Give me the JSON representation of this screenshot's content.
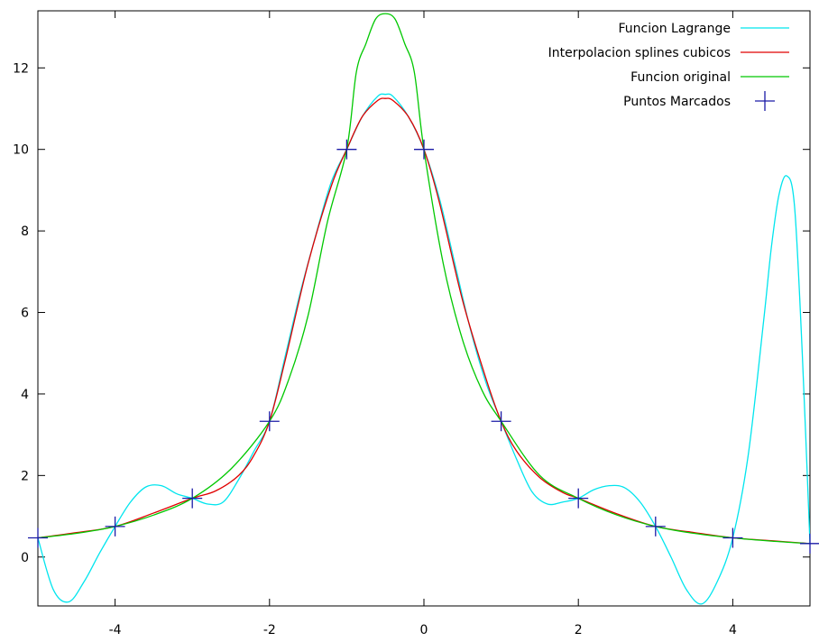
{
  "chart_data": {
    "type": "line",
    "title": "",
    "xlabel": "",
    "ylabel": "",
    "xlim": [
      -5,
      5
    ],
    "ylim": [
      -1.2,
      13.4
    ],
    "grid": false,
    "legend_position": "top-right",
    "x_ticks": [
      "-4",
      "-2",
      "0",
      "2",
      "4"
    ],
    "y_ticks": [
      "0",
      "2",
      "4",
      "6",
      "8",
      "10",
      "12"
    ],
    "x_tick_values": [
      -4,
      -2,
      0,
      2,
      4
    ],
    "y_tick_values": [
      0,
      2,
      4,
      6,
      8,
      10,
      12
    ],
    "series": [
      {
        "name": "Funcion Lagrange",
        "color": "#00e5ee",
        "kind": "line",
        "x": [
          -5,
          -4.8,
          -4.6,
          -4.4,
          -4.2,
          -4,
          -3.8,
          -3.6,
          -3.4,
          -3.2,
          -3,
          -2.8,
          -2.6,
          -2.4,
          -2.2,
          -2,
          -1.8,
          -1.6,
          -1.4,
          -1.2,
          -1,
          -0.8,
          -0.6,
          -0.5,
          -0.4,
          -0.2,
          0,
          0.2,
          0.4,
          0.6,
          0.8,
          1,
          1.2,
          1.4,
          1.6,
          1.8,
          2,
          2.2,
          2.4,
          2.6,
          2.8,
          3,
          3.2,
          3.4,
          3.6,
          3.8,
          4,
          4.2,
          4.4,
          4.5,
          4.6,
          4.7,
          4.8,
          4.9,
          5
        ],
        "y": [
          0.47,
          -0.8,
          -1.1,
          -0.6,
          0.1,
          0.75,
          1.35,
          1.72,
          1.75,
          1.55,
          1.44,
          1.3,
          1.35,
          1.9,
          2.6,
          3.33,
          4.9,
          6.5,
          7.9,
          9.2,
          10.0,
          10.8,
          11.3,
          11.35,
          11.3,
          10.8,
          10.0,
          8.8,
          7.2,
          5.6,
          4.3,
          3.33,
          2.4,
          1.6,
          1.3,
          1.35,
          1.44,
          1.65,
          1.75,
          1.7,
          1.35,
          0.75,
          0.0,
          -0.8,
          -1.15,
          -0.6,
          0.47,
          2.5,
          5.8,
          7.6,
          8.9,
          9.35,
          8.6,
          5.0,
          0.33
        ]
      },
      {
        "name": "Interpolacion splines cubicos",
        "color": "#e00000",
        "kind": "line",
        "x": [
          -5,
          -4.5,
          -4,
          -3.5,
          -3,
          -2.7,
          -2.4,
          -2.2,
          -2,
          -1.8,
          -1.5,
          -1.2,
          -1,
          -0.8,
          -0.6,
          -0.5,
          -0.4,
          -0.2,
          0,
          0.2,
          0.5,
          0.8,
          1,
          1.2,
          1.5,
          1.8,
          2,
          2.5,
          3,
          3.5,
          4,
          4.5,
          5
        ],
        "y": [
          0.47,
          0.6,
          0.75,
          1.08,
          1.44,
          1.62,
          2.0,
          2.5,
          3.33,
          4.8,
          7.2,
          9.1,
          10.0,
          10.8,
          11.2,
          11.25,
          11.2,
          10.8,
          10.0,
          8.7,
          6.3,
          4.4,
          3.33,
          2.6,
          1.95,
          1.58,
          1.44,
          1.06,
          0.75,
          0.6,
          0.47,
          0.4,
          0.33
        ]
      },
      {
        "name": "Funcion original",
        "color": "#00c800",
        "kind": "line",
        "x": [
          -5,
          -4.5,
          -4,
          -3.5,
          -3,
          -2.5,
          -2,
          -1.75,
          -1.5,
          -1.25,
          -1,
          -0.875,
          -0.75,
          -0.625,
          -0.5,
          -0.375,
          -0.25,
          -0.125,
          0,
          0.25,
          0.5,
          0.75,
          1,
          1.5,
          2,
          2.5,
          3,
          3.5,
          4,
          4.5,
          5
        ],
        "y": [
          0.47,
          0.58,
          0.75,
          1.03,
          1.44,
          2.16,
          3.33,
          4.36,
          5.93,
          8.22,
          10.0,
          11.9,
          12.6,
          13.2,
          13.33,
          13.2,
          12.6,
          11.9,
          10.0,
          7.2,
          5.33,
          4.1,
          3.33,
          2.0,
          1.44,
          1.03,
          0.75,
          0.58,
          0.47,
          0.39,
          0.33
        ]
      },
      {
        "name": "Puntos Marcados",
        "color": "#1a1aa6",
        "kind": "points",
        "x": [
          -5,
          -4,
          -3,
          -2,
          -1,
          0,
          1,
          2,
          3,
          4,
          5
        ],
        "y": [
          0.47,
          0.75,
          1.44,
          3.33,
          10.0,
          10.0,
          3.33,
          1.44,
          0.75,
          0.47,
          0.33
        ]
      }
    ]
  }
}
